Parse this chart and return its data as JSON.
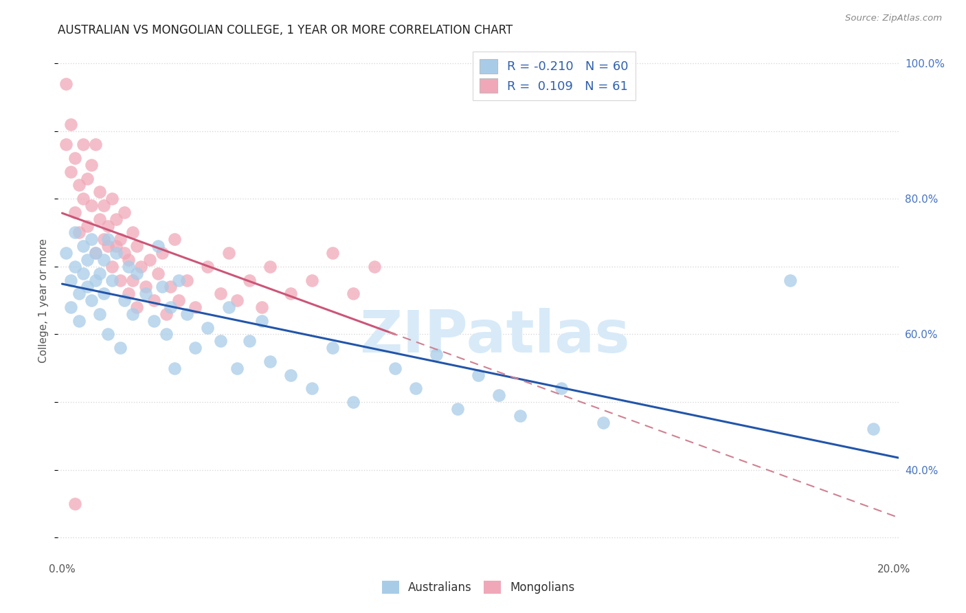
{
  "title": "AUSTRALIAN VS MONGOLIAN COLLEGE, 1 YEAR OR MORE CORRELATION CHART",
  "source": "Source: ZipAtlas.com",
  "ylabel": "College, 1 year or more",
  "legend_label1": "Australians",
  "legend_label2": "Mongolians",
  "R1": -0.21,
  "N1": 60,
  "R2": 0.109,
  "N2": 61,
  "color_blue": "#a8cce8",
  "color_pink": "#f0a8b8",
  "line_color_blue": "#2255aa",
  "line_color_pink": "#cc5577",
  "line_color_pink_dash": "#d08090",
  "xlim_min": -0.001,
  "xlim_max": 0.201,
  "ylim_min": 0.27,
  "ylim_max": 1.03,
  "background_color": "#ffffff",
  "grid_color": "#d8d8d8",
  "title_color": "#222222",
  "axis_label_color": "#555555",
  "right_tick_color": "#4472c4",
  "source_color": "#888888",
  "legend_text_color": "#3060b0",
  "watermark": "ZIPatlas",
  "watermark_color": "#d8eaf8",
  "aus_x": [
    0.001,
    0.002,
    0.002,
    0.003,
    0.003,
    0.004,
    0.004,
    0.005,
    0.005,
    0.006,
    0.006,
    0.007,
    0.007,
    0.008,
    0.008,
    0.009,
    0.009,
    0.01,
    0.01,
    0.011,
    0.011,
    0.012,
    0.013,
    0.014,
    0.015,
    0.016,
    0.017,
    0.018,
    0.02,
    0.022,
    0.023,
    0.024,
    0.025,
    0.026,
    0.027,
    0.028,
    0.03,
    0.032,
    0.035,
    0.038,
    0.04,
    0.042,
    0.045,
    0.048,
    0.05,
    0.055,
    0.06,
    0.065,
    0.07,
    0.08,
    0.085,
    0.09,
    0.095,
    0.1,
    0.105,
    0.11,
    0.12,
    0.13,
    0.175,
    0.195
  ],
  "aus_y": [
    0.72,
    0.68,
    0.64,
    0.75,
    0.7,
    0.66,
    0.62,
    0.69,
    0.73,
    0.67,
    0.71,
    0.65,
    0.74,
    0.68,
    0.72,
    0.63,
    0.69,
    0.66,
    0.71,
    0.74,
    0.6,
    0.68,
    0.72,
    0.58,
    0.65,
    0.7,
    0.63,
    0.69,
    0.66,
    0.62,
    0.73,
    0.67,
    0.6,
    0.64,
    0.55,
    0.68,
    0.63,
    0.58,
    0.61,
    0.59,
    0.64,
    0.55,
    0.59,
    0.62,
    0.56,
    0.54,
    0.52,
    0.58,
    0.5,
    0.55,
    0.52,
    0.57,
    0.49,
    0.54,
    0.51,
    0.48,
    0.52,
    0.47,
    0.68,
    0.46
  ],
  "mong_x": [
    0.001,
    0.001,
    0.002,
    0.002,
    0.003,
    0.003,
    0.004,
    0.004,
    0.005,
    0.005,
    0.006,
    0.006,
    0.007,
    0.007,
    0.008,
    0.008,
    0.009,
    0.009,
    0.01,
    0.01,
    0.011,
    0.011,
    0.012,
    0.012,
    0.013,
    0.013,
    0.014,
    0.014,
    0.015,
    0.015,
    0.016,
    0.016,
    0.017,
    0.017,
    0.018,
    0.018,
    0.019,
    0.02,
    0.021,
    0.022,
    0.023,
    0.024,
    0.025,
    0.026,
    0.027,
    0.028,
    0.03,
    0.032,
    0.035,
    0.038,
    0.04,
    0.042,
    0.045,
    0.048,
    0.05,
    0.055,
    0.06,
    0.065,
    0.07,
    0.075,
    0.003
  ],
  "mong_y": [
    0.97,
    0.88,
    0.84,
    0.91,
    0.86,
    0.78,
    0.82,
    0.75,
    0.8,
    0.88,
    0.76,
    0.83,
    0.79,
    0.85,
    0.72,
    0.88,
    0.77,
    0.81,
    0.74,
    0.79,
    0.73,
    0.76,
    0.8,
    0.7,
    0.73,
    0.77,
    0.68,
    0.74,
    0.78,
    0.72,
    0.66,
    0.71,
    0.75,
    0.68,
    0.73,
    0.64,
    0.7,
    0.67,
    0.71,
    0.65,
    0.69,
    0.72,
    0.63,
    0.67,
    0.74,
    0.65,
    0.68,
    0.64,
    0.7,
    0.66,
    0.72,
    0.65,
    0.68,
    0.64,
    0.7,
    0.66,
    0.68,
    0.72,
    0.66,
    0.7,
    0.35
  ],
  "right_yticks": [
    0.4,
    0.6,
    0.8,
    1.0
  ],
  "right_yticklabels": [
    "40.0%",
    "60.0%",
    "80.0%",
    "100.0%"
  ]
}
